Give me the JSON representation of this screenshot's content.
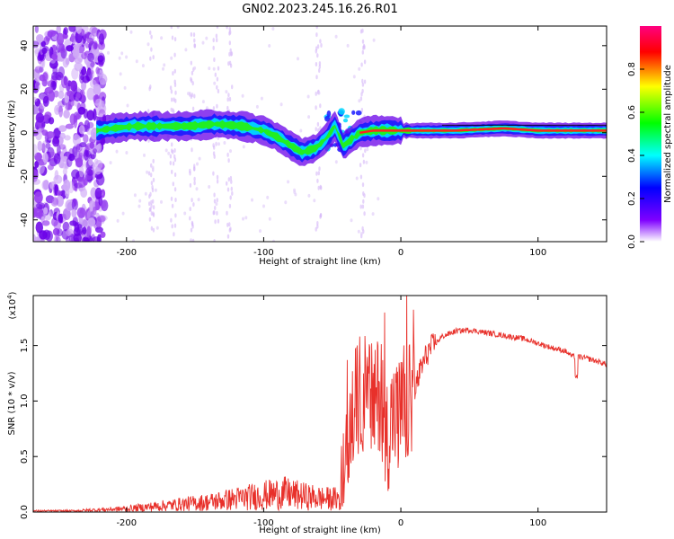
{
  "title": "GN02.2023.245.16.26.R01",
  "colors": {
    "spectrogram_noise": "#8a2be2",
    "snr_line": "#e8302a",
    "axis": "#000000"
  },
  "chart_data": [
    {
      "type": "heatmap",
      "xlabel": "Height of straight line (km)",
      "ylabel": "Frequency (Hz)",
      "xlim": [
        -268,
        150
      ],
      "ylim": [
        -50,
        49
      ],
      "xticks": [
        -200,
        -100,
        0,
        100
      ],
      "yticks": [
        -40,
        -20,
        0,
        20,
        40
      ],
      "colorbar": {
        "label": "Normalized spectral amplitude",
        "range": [
          0.0,
          1.0
        ],
        "ticks": [
          "0.0",
          "0.2",
          "0.4",
          "0.6",
          "0.8"
        ],
        "tick_values": [
          0.0,
          0.2,
          0.4,
          0.6,
          0.8
        ],
        "colors": [
          "#ffffff",
          "#7f00ff",
          "#0000ff",
          "#00ffff",
          "#00ff00",
          "#ffff00",
          "#ff0000",
          "#ff0080"
        ]
      },
      "ridge": {
        "x": [
          -222,
          -210,
          -195,
          -175,
          -155,
          -135,
          -115,
          -100,
          -90,
          -80,
          -72,
          -62,
          -55,
          -48,
          -42,
          -36,
          -30,
          -20,
          -5,
          10,
          40,
          75,
          100,
          130,
          150
        ],
        "y": [
          1,
          2,
          3,
          3,
          3,
          4,
          3,
          1,
          -2,
          -6,
          -9,
          -7,
          -3,
          3,
          -6,
          -3,
          0,
          1,
          1,
          1,
          1,
          2,
          1,
          1,
          1
        ]
      }
    },
    {
      "type": "line",
      "xlabel": "Height of straight line (km)",
      "ylabel": "SNR (10 * v/v)",
      "y_multiplier_label": "(x10",
      "y_multiplier_exp": "4",
      "y_multiplier_close": ")",
      "xlim": [
        -268,
        150
      ],
      "ylim": [
        0,
        1.95
      ],
      "xticks": [
        -200,
        -100,
        0,
        100
      ],
      "yticks": [
        "0.0",
        "0.5",
        "1.0",
        "1.5"
      ],
      "ytick_values": [
        0.0,
        0.5,
        1.0,
        1.5
      ],
      "series": [
        {
          "x": [
            -268,
            -240,
            -220,
            -200,
            -180,
            -160,
            -140,
            -120,
            -100,
            -85,
            -70,
            -55,
            -45,
            -40,
            -35,
            -30,
            -25,
            -20,
            -15,
            -10,
            -5,
            0,
            5,
            10,
            15,
            20,
            30,
            40,
            50,
            60,
            70,
            80,
            90,
            100,
            110,
            120,
            125,
            130,
            140,
            150
          ],
          "y": [
            0.01,
            0.01,
            0.02,
            0.03,
            0.05,
            0.07,
            0.09,
            0.12,
            0.15,
            0.17,
            0.14,
            0.12,
            0.12,
            0.35,
            0.9,
            1.05,
            1.1,
            0.95,
            1.1,
            0.7,
            0.9,
            0.85,
            0.95,
            1.1,
            1.3,
            1.45,
            1.58,
            1.63,
            1.64,
            1.62,
            1.6,
            1.58,
            1.56,
            1.52,
            1.48,
            1.45,
            1.4,
            1.4,
            1.37,
            1.33
          ]
        }
      ]
    }
  ]
}
